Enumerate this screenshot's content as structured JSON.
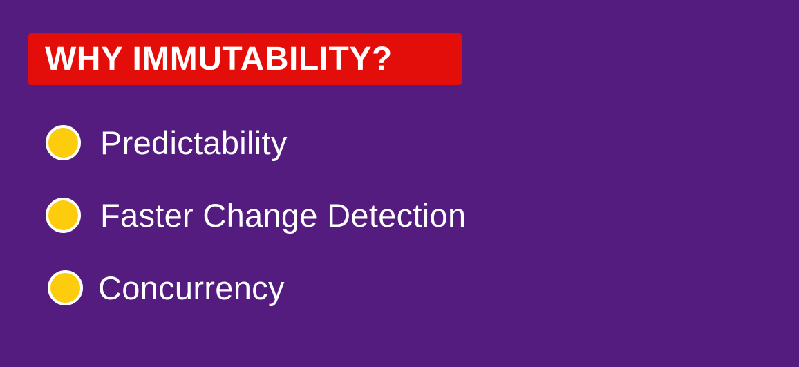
{
  "slide": {
    "title": "WHY IMMUTABILITY?",
    "items": [
      {
        "label": "Predictability"
      },
      {
        "label": "Faster Change Detection"
      },
      {
        "label": "Concurrency"
      }
    ]
  },
  "colors": {
    "background": "#541c7e",
    "banner": "#e30e09",
    "bullet": "#fdcc0d",
    "text": "#ffffff"
  }
}
